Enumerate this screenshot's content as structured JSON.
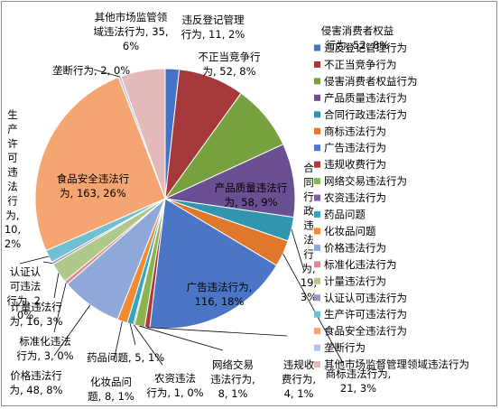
{
  "chart_data": {
    "type": "pie",
    "legend_position": "right",
    "series": [
      {
        "name": "违反登记管理行为",
        "value": 11,
        "percent": "2%",
        "color": "#4472C4"
      },
      {
        "name": "不正当竞争行为",
        "value": 52,
        "percent": "8%",
        "color": "#A5383A"
      },
      {
        "name": "侵害消费者权益行为",
        "value": 52,
        "percent": "8%",
        "color": "#77A03F"
      },
      {
        "name": "产品质量违法行为",
        "value": 58,
        "percent": "9%",
        "color": "#6A4F92"
      },
      {
        "name": "合同行政违法行为",
        "value": 19,
        "percent": "3%",
        "color": "#3295AF"
      },
      {
        "name": "商标违法行为",
        "value": 21,
        "percent": "3%",
        "color": "#E0782B"
      },
      {
        "name": "广告违法行为",
        "value": 116,
        "percent": "18%",
        "color": "#4B76C6"
      },
      {
        "name": "违规收费行为",
        "value": 4,
        "percent": "1%",
        "color": "#B0373A"
      },
      {
        "name": "网络交易违法行为",
        "value": 8,
        "percent": "1%",
        "color": "#8AB54E"
      },
      {
        "name": "农资违法行为",
        "value": 1,
        "percent": "0%",
        "color": "#7B5FA6"
      },
      {
        "name": "药品问题",
        "value": 5,
        "percent": "1%",
        "color": "#34A6C2"
      },
      {
        "name": "化妆品问题",
        "value": 8,
        "percent": "1%",
        "color": "#F08A33"
      },
      {
        "name": "价格违法行为",
        "value": 48,
        "percent": "8%",
        "color": "#8FA8D9"
      },
      {
        "name": "标准化违法行为",
        "value": 3,
        "percent": "0%",
        "color": "#DA8A8C"
      },
      {
        "name": "计量违法行为",
        "value": 16,
        "percent": "3%",
        "color": "#AEC98A"
      },
      {
        "name": "认证认可违法行为",
        "value": 2,
        "percent": "0%",
        "color": "#A494C0"
      },
      {
        "name": "生产许可违法行为",
        "value": 10,
        "percent": "2%",
        "color": "#71BFD3"
      },
      {
        "name": "食品安全违法行为",
        "value": 163,
        "percent": "26%",
        "color": "#F5A571"
      },
      {
        "name": "垄断行为",
        "value": 2,
        "percent": "0%",
        "color": "#B4C3E3"
      },
      {
        "name": "其他市场监督管理领域违法行为",
        "value": 35,
        "percent": "6%",
        "color": "#E4B9B9"
      }
    ],
    "data_labels": [
      {
        "lines": [
          "违反登记管理",
          "行为, 11, 2%"
        ]
      },
      {
        "lines": [
          "不正当竞争行",
          "为, 52, 8%"
        ]
      },
      {
        "lines": [
          "侵害消费者权益",
          "行为, 52, 8%"
        ]
      },
      {
        "lines": [
          "产品质量违法行",
          "为, 58, 9%"
        ]
      },
      {
        "lines": [
          "合",
          "同",
          "行",
          "政",
          "违",
          "法",
          "行",
          "为,",
          "19,",
          "3%"
        ]
      },
      {
        "lines": [
          "商标违法行为,",
          "21, 3%"
        ]
      },
      {
        "lines": [
          "广告违法行为,",
          "116, 18%"
        ]
      },
      {
        "lines": [
          "违规收",
          "费行为,",
          "4, 1%"
        ]
      },
      {
        "lines": [
          "网络交易",
          "违法行为,",
          "8, 1%"
        ]
      },
      {
        "lines": [
          "农资违法",
          "行为, 1, 0%"
        ]
      },
      {
        "lines": [
          "药品问题, 5, 1%"
        ]
      },
      {
        "lines": [
          "化妆品问",
          "题, 8, 1%"
        ]
      },
      {
        "lines": [
          "价格违法行",
          "为, 48, 8%"
        ]
      },
      {
        "lines": [
          "标准化违法",
          "行为, 3, 0%"
        ]
      },
      {
        "lines": [
          "计量违法行",
          "为, 16, 3%"
        ]
      },
      {
        "lines": [
          "认证认",
          "可违法",
          "行为, 2,",
          "0%"
        ]
      },
      {
        "lines": [
          "生",
          "产",
          "许",
          "可",
          "违",
          "法",
          "行",
          "为,",
          "10,",
          "2%"
        ]
      },
      {
        "lines": [
          "食品安全违法行",
          "为, 163, 26%"
        ]
      },
      {
        "lines": [
          "垄断行为, 2, 0%"
        ]
      },
      {
        "lines": [
          "其他市场监管领",
          "域违法行为, 35,",
          "6%"
        ]
      }
    ]
  }
}
